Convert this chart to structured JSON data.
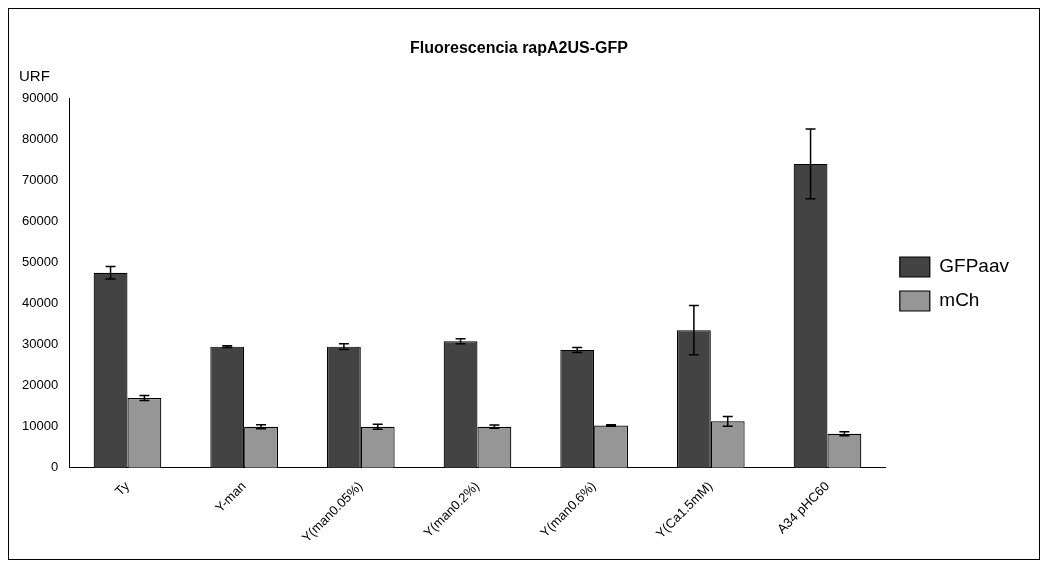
{
  "chart_data": {
    "type": "bar",
    "title": "Fluorescencia rapA2US-GFP",
    "ylabel": "URF",
    "categories": [
      "Ty",
      "Y-man",
      "Y(man0.05%)",
      "Y(man0.2%)",
      "Y(man0.6%)",
      "Y(Ca1.5mM)",
      "A34 pHC60"
    ],
    "series": [
      {
        "name": "GFPaav",
        "color": "#434343",
        "values": [
          47500,
          29500,
          29500,
          30800,
          28700,
          33500,
          74000
        ],
        "errors": [
          1500,
          200,
          700,
          600,
          600,
          6000,
          8500
        ]
      },
      {
        "name": "mCh",
        "color": "#969696",
        "values": [
          17000,
          10000,
          10000,
          10000,
          10300,
          11300,
          8300
        ],
        "errors": [
          600,
          500,
          600,
          400,
          200,
          1200,
          500
        ]
      }
    ],
    "ylim": [
      0,
      90000
    ],
    "yticks": [
      0,
      10000,
      20000,
      30000,
      40000,
      50000,
      60000,
      70000,
      80000,
      90000
    ],
    "grid": false,
    "legend": "right"
  }
}
